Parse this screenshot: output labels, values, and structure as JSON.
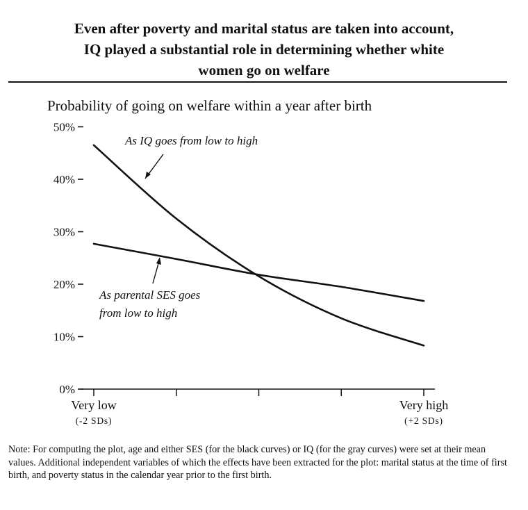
{
  "header": {
    "title_line1": "Even after poverty and marital status are taken into account,",
    "title_line2": "IQ played a substantial role in determining whether white",
    "title_line3": "women go on welfare"
  },
  "chart_data": {
    "type": "line",
    "title": "Even after poverty and marital status are taken into account, IQ played a substantial role in determining whether white women go on welfare",
    "subtitle": "Probability of going on welfare within a year after birth",
    "ylim": [
      0,
      50
    ],
    "y_ticks": [
      0,
      10,
      20,
      30,
      40,
      50
    ],
    "y_tick_labels": [
      "0%",
      "10%",
      "20%",
      "30%",
      "40%",
      "50%"
    ],
    "x": [
      -2,
      -1,
      0,
      1,
      2
    ],
    "x_end_labels": [
      {
        "label": "Very low",
        "sublabel": "(-2 SDs)"
      },
      {
        "label": "Very high",
        "sublabel": "(+2 SDs)"
      }
    ],
    "series": [
      {
        "name": "As IQ goes from low to high",
        "color": "#111111",
        "values": [
          46.5,
          32.5,
          21.5,
          13.5,
          8.3
        ]
      },
      {
        "name": "As parental SES goes from low to high",
        "color": "#111111",
        "values": [
          27.7,
          24.8,
          21.8,
          19.5,
          16.8
        ]
      }
    ],
    "annotations": [
      "As IQ goes from low to high",
      "As parental SES goes from low to high"
    ],
    "grid": false,
    "legend": "none"
  },
  "note": "Note: For computing the plot, age and either SES (for the black curves) or IQ (for the gray curves) were set at their mean values. Additional independent variables of which the effects have been extracted for the plot: marital status at the time of first birth, and poverty status in the calendar year prior to the first birth."
}
